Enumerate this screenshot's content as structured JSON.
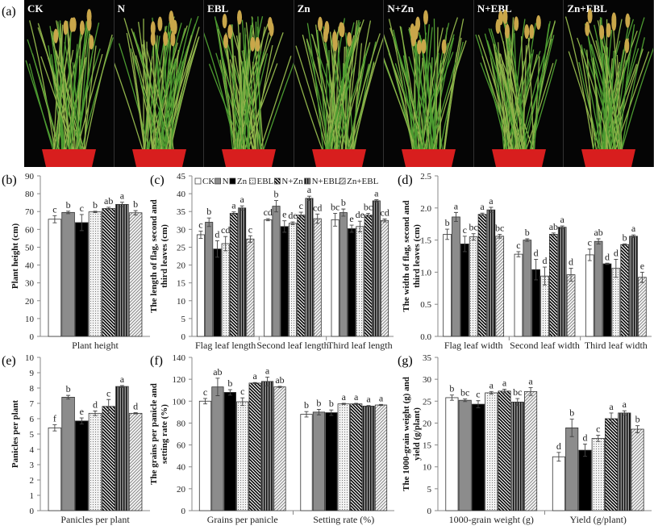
{
  "panel_labels": {
    "a": "(a)",
    "b": "(b)",
    "c": "(c)",
    "d": "(d)",
    "e": "(e)",
    "f": "(f)",
    "g": "(g)"
  },
  "photos": [
    {
      "label": "CK"
    },
    {
      "label": "N"
    },
    {
      "label": "EBL"
    },
    {
      "label": "Zn"
    },
    {
      "label": "N+Zn"
    },
    {
      "label": "N+EBL"
    },
    {
      "label": "Zn+EBL"
    }
  ],
  "legend": [
    "CK",
    "N",
    "Zn",
    "EBL",
    "N+Zn",
    "N+EBL",
    "Zn+EBL"
  ],
  "colors": {
    "CK": "#ffffff",
    "N": "#8c8c8c",
    "Zn": "#000000",
    "EBL": "dotted-light",
    "N+Zn": "diagonal-black",
    "N+EBL": "vertical-gray",
    "Zn+EBL": "crosshatch-light",
    "pot": "#d81e1e",
    "plant": "#3f8a2a"
  },
  "chart_data": [
    {
      "panel": "b",
      "type": "bar",
      "ylabel": "Plant height (cm)",
      "ylim": [
        0,
        90
      ],
      "ytick_step": 10,
      "tick_decimals": 0,
      "categories": [
        "Plant height"
      ],
      "series_names": [
        "CK",
        "N",
        "Zn",
        "EBL",
        "N+Zn",
        "N+EBL",
        "Zn+EBL"
      ],
      "values": [
        [
          65.7,
          69.5,
          63.8,
          69.8,
          71.7,
          74.0,
          69.3
        ]
      ],
      "errors": [
        [
          2.0,
          0.7,
          4.5,
          0.4,
          0.7,
          1.2,
          1.2
        ]
      ],
      "letters": [
        [
          "c",
          "b",
          "c",
          "b",
          "ab",
          "a",
          "b"
        ]
      ]
    },
    {
      "panel": "c",
      "type": "bar",
      "ylabel": "The length of flag, second and third leaves (cm)",
      "ylim": [
        0,
        45
      ],
      "ytick_step": 5,
      "tick_decimals": 0,
      "legend": "top",
      "categories": [
        "Flag leaf length",
        "Second leaf length",
        "Third leaf length"
      ],
      "series_names": [
        "CK",
        "N",
        "Zn",
        "EBL",
        "N+Zn",
        "N+EBL",
        "Zn+EBL"
      ],
      "values": [
        [
          28.5,
          32.0,
          24.5,
          26.0,
          34.5,
          36.0,
          27.3
        ],
        [
          32.7,
          36.5,
          30.8,
          31.7,
          34.0,
          38.7,
          33.0
        ],
        [
          32.7,
          34.7,
          30.2,
          30.8,
          34.0,
          38.0,
          32.5
        ]
      ],
      "errors": [
        [
          1.0,
          1.2,
          2.3,
          2.0,
          0.4,
          0.6,
          0.9
        ],
        [
          0.3,
          1.6,
          1.6,
          0.4,
          0.8,
          0.6,
          1.3
        ],
        [
          1.8,
          1.0,
          1.0,
          1.5,
          0.5,
          0.3,
          0.4
        ]
      ],
      "letters": [
        [
          "c",
          "b",
          "d",
          "cd",
          "a",
          "a",
          "c"
        ],
        [
          "cd",
          "b",
          "e",
          "de",
          "c",
          "a",
          "cd"
        ],
        [
          "bc",
          "b",
          "e",
          "de",
          "bc",
          "a",
          "cd"
        ]
      ]
    },
    {
      "panel": "d",
      "type": "bar",
      "ylabel": "The width of flag, second and third leaves (cm)",
      "ylim": [
        0,
        2.5
      ],
      "ytick_step": 0.5,
      "tick_decimals": 1,
      "categories": [
        "Flag leaf width",
        "Second leaf width",
        "Third leaf width"
      ],
      "series_names": [
        "CK",
        "N",
        "Zn",
        "EBL",
        "N+Zn",
        "N+EBL",
        "Zn+EBL"
      ],
      "values": [
        [
          1.59,
          1.86,
          1.44,
          1.55,
          1.9,
          1.97,
          1.56
        ],
        [
          1.28,
          1.5,
          1.04,
          0.94,
          1.59,
          1.7,
          0.96
        ],
        [
          1.27,
          1.48,
          1.13,
          1.06,
          1.43,
          1.56,
          0.92
        ]
      ],
      "errors": [
        [
          0.08,
          0.07,
          0.12,
          0.05,
          0.02,
          0.04,
          0.03
        ],
        [
          0.04,
          0.02,
          0.16,
          0.14,
          0.02,
          0.02,
          0.1
        ],
        [
          0.09,
          0.04,
          0.01,
          0.14,
          0.01,
          0.02,
          0.08
        ]
      ],
      "letters": [
        [
          "b",
          "a",
          "c",
          "bc",
          "a",
          "a",
          "bc"
        ],
        [
          "c",
          "b",
          "d",
          "d",
          "ab",
          "a",
          "d"
        ],
        [
          "c",
          "ab",
          "d",
          "d",
          "b",
          "a",
          "e"
        ]
      ]
    },
    {
      "panel": "e",
      "type": "bar",
      "ylabel": "Panicles per plant",
      "ylim": [
        0,
        10
      ],
      "ytick_step": 1,
      "tick_decimals": 0,
      "categories": [
        "Panicles per plant"
      ],
      "series_names": [
        "CK",
        "N",
        "Zn",
        "EBL",
        "N+Zn",
        "N+EBL",
        "Zn+EBL"
      ],
      "values": [
        [
          5.4,
          7.4,
          5.85,
          6.35,
          6.8,
          8.1,
          6.35
        ]
      ],
      "errors": [
        [
          0.2,
          0.12,
          0.2,
          0.15,
          0.45,
          0.06,
          0.04
        ]
      ],
      "letters": [
        [
          "f",
          "b",
          "e",
          "d",
          "c",
          "a",
          "d"
        ]
      ]
    },
    {
      "panel": "f",
      "type": "bar",
      "ylabel": "The grains per panicle and setting rate (%)",
      "ylim": [
        0,
        140
      ],
      "ytick_step": 20,
      "tick_decimals": 0,
      "categories": [
        "Grains per panicle",
        "Setting rate (%)"
      ],
      "series_names": [
        "CK",
        "N",
        "Zn",
        "EBL",
        "N+Zn",
        "N+EBL",
        "Zn+EBL"
      ],
      "values": [
        [
          100,
          113,
          108,
          99.5,
          116.5,
          118,
          113
        ],
        [
          88,
          90,
          89.5,
          97.5,
          97.5,
          95.5,
          96.5
        ]
      ],
      "errors": [
        [
          2.5,
          8,
          2.5,
          3.5,
          0.5,
          4,
          0.5
        ],
        [
          2.5,
          2.5,
          2.5,
          0.5,
          0.5,
          0.5,
          0.5
        ]
      ],
      "letters": [
        [
          "c",
          "ab",
          "b",
          "c",
          "a",
          "a",
          "ab"
        ],
        [
          "b",
          "b",
          "b",
          "a",
          "a",
          "a",
          "a"
        ]
      ]
    },
    {
      "panel": "g",
      "type": "bar",
      "ylabel": "The 1000-grain weight (g) and yield (g/plant)",
      "ylim": [
        0,
        35
      ],
      "ytick_step": 5,
      "tick_decimals": 0,
      "categories": [
        "1000-grain weight (g)",
        "Yield (g/plant)"
      ],
      "series_names": [
        "CK",
        "N",
        "Zn",
        "EBL",
        "N+Zn",
        "N+EBL",
        "Zn+EBL"
      ],
      "values": [
        [
          25.8,
          25.2,
          24.3,
          26.9,
          27.3,
          24.8,
          27.2
        ],
        [
          12.3,
          18.9,
          13.8,
          16.5,
          21.0,
          22.3,
          18.6
        ]
      ],
      "errors": [
        [
          0.6,
          0.3,
          0.8,
          0.3,
          0.4,
          0.8,
          0.9
        ],
        [
          1.0,
          2.0,
          1.4,
          0.7,
          1.3,
          0.5,
          0.8
        ]
      ],
      "letters": [
        [
          "b",
          "bc",
          "c",
          "a",
          "a",
          "bc",
          "a"
        ],
        [
          "d",
          "b",
          "d",
          "c",
          "a",
          "a",
          "b"
        ]
      ]
    }
  ]
}
